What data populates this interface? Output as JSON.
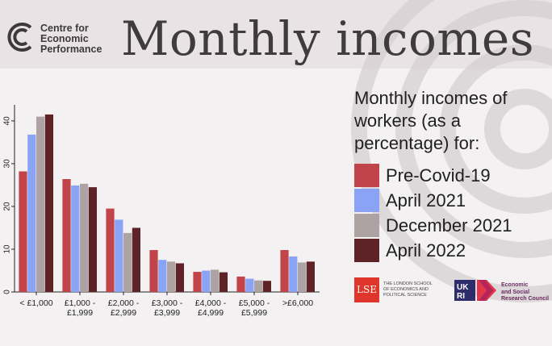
{
  "header": {
    "org_name_lines": [
      "Centre for",
      "Economic",
      "Performance"
    ],
    "title": "Monthly incomes"
  },
  "legend": {
    "title_lines": [
      "Monthly incomes of",
      "workers (as a",
      "percentage) for:"
    ]
  },
  "logos": {
    "lse_mark": "LSE",
    "lse_lines": [
      "THE LONDON SCHOOL",
      "OF ECONOMICS AND",
      "POLITICAL SCIENCE"
    ],
    "ukri_lines": [
      "Economic",
      "and Social",
      "Research Council"
    ]
  },
  "colors": {
    "pre_covid": "#c0444a",
    "april_2021": "#8aa3f5",
    "december_2021": "#aea3a3",
    "april_2022": "#5e2327",
    "header_bg": "#e9e3e5",
    "background": "#f4f1f2"
  },
  "chart_data": {
    "type": "bar",
    "categories": [
      [
        "< £1,000"
      ],
      [
        "£1,000 -",
        "£1,999"
      ],
      [
        "£2,000 -",
        "£2,999"
      ],
      [
        "£3,000 -",
        "£3,999"
      ],
      [
        "£4,000 -",
        "£4,999"
      ],
      [
        "£5,000 -",
        "£5,999"
      ],
      [
        ">£6,000"
      ]
    ],
    "series": [
      {
        "name": "Pre-Covid-19",
        "color": "#c0444a",
        "values": [
          28.2,
          26.4,
          19.5,
          9.8,
          4.7,
          3.6,
          9.8
        ]
      },
      {
        "name": "April 2021",
        "color": "#8aa3f5",
        "values": [
          36.8,
          24.9,
          16.9,
          7.5,
          5.0,
          3.1,
          8.3
        ]
      },
      {
        "name": "December 2021",
        "color": "#aea3a3",
        "values": [
          41.0,
          25.3,
          13.8,
          7.1,
          5.2,
          2.7,
          6.9
        ]
      },
      {
        "name": "April 2022",
        "color": "#5e2327",
        "values": [
          41.5,
          24.5,
          15.0,
          6.7,
          4.6,
          2.6,
          7.1
        ]
      }
    ],
    "yticks": [
      0,
      10,
      20,
      30,
      40
    ],
    "ylim": [
      0,
      43
    ],
    "xlabel": "",
    "ylabel": "",
    "grid": false,
    "legend_position": "right"
  }
}
